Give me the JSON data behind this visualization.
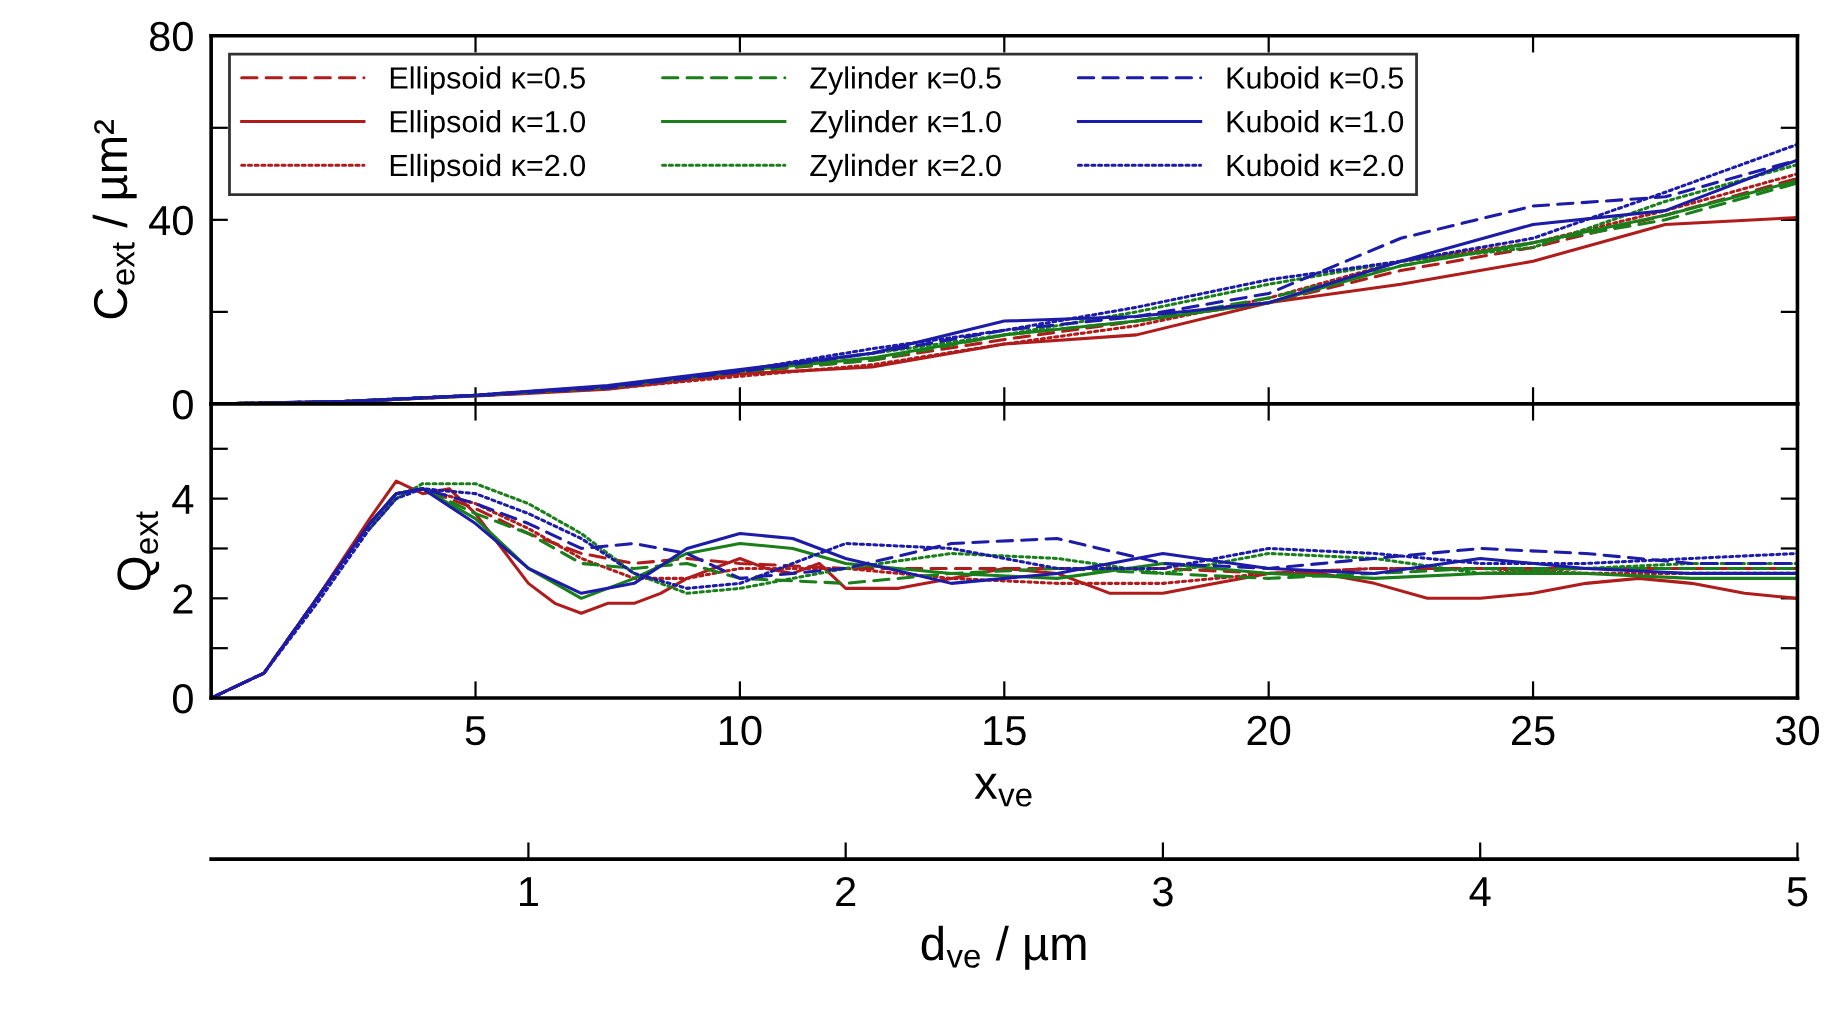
{
  "chart_data": [
    {
      "type": "line",
      "ylabel": "C$_{ext}$ / µm²",
      "xlim": [
        0,
        30
      ],
      "xticks": [
        5,
        10,
        15,
        20,
        25,
        30
      ],
      "ylim": [
        0,
        80
      ],
      "yticks": [
        0,
        {
          "value": 20,
          "label": null
        },
        40,
        {
          "value": 60,
          "label": null
        },
        80
      ],
      "tick_labels": "y",
      "legend": "top left",
      "x": [
        0,
        2.5,
        5,
        7.5,
        10,
        12.5,
        15,
        17.5,
        20,
        22.5,
        25,
        27.5,
        30
      ],
      "series": [
        {
          "name": "Ellipsoid κ=0.5",
          "color": "#b01c1c",
          "line_style": "dashed",
          "values": [
            0,
            0.5,
            1.8,
            3.5,
            6.8,
            9.5,
            14,
            18,
            22,
            29,
            34,
            41,
            49
          ]
        },
        {
          "name": "Ellipsoid κ=1.0",
          "color": "#b01c1c",
          "line_style": "solid",
          "values": [
            0,
            0.5,
            1.7,
            3.2,
            6.5,
            8,
            13,
            15,
            22,
            26,
            31,
            39,
            40.5
          ]
        },
        {
          "name": "Ellipsoid κ=2.0",
          "color": "#b01c1c",
          "line_style": "dotted",
          "values": [
            0,
            0.5,
            1.8,
            3.3,
            6,
            8.5,
            13,
            17,
            23,
            31,
            35,
            42,
            50
          ]
        },
        {
          "name": "Zylinder κ=0.5",
          "color": "#1a7f1a",
          "line_style": "dashed",
          "values": [
            0,
            0.5,
            1.8,
            3.5,
            7,
            9.5,
            15,
            18,
            23,
            30,
            35,
            40,
            48
          ]
        },
        {
          "name": "Zylinder κ=1.0",
          "color": "#1a7f1a",
          "line_style": "solid",
          "values": [
            0,
            0.5,
            1.8,
            3.6,
            7.2,
            10,
            15,
            18,
            22,
            30,
            35,
            41,
            48.5
          ]
        },
        {
          "name": "Zylinder κ=2.0",
          "color": "#1a7f1a",
          "line_style": "dotted",
          "values": [
            0,
            0.5,
            1.9,
            3.6,
            7,
            11,
            15,
            20,
            26,
            31,
            34,
            44,
            52
          ]
        },
        {
          "name": "Kuboid κ=0.5",
          "color": "#1c1ca8",
          "line_style": "dashed",
          "values": [
            0,
            0.5,
            1.8,
            3.5,
            7,
            11,
            16,
            19,
            24,
            36,
            43,
            45,
            53
          ]
        },
        {
          "name": "Kuboid κ=1.0",
          "color": "#1c1ca8",
          "line_style": "solid",
          "values": [
            0,
            0.5,
            1.9,
            4,
            7.5,
            11,
            18,
            19,
            22,
            31,
            39,
            42,
            53
          ]
        },
        {
          "name": "Kuboid κ=2.0",
          "color": "#1c1ca8",
          "line_style": "dotted",
          "values": [
            0,
            0.5,
            1.9,
            3.8,
            7.2,
            12,
            16,
            21,
            27,
            31,
            36,
            46,
            56.4
          ]
        }
      ]
    },
    {
      "type": "line",
      "ylabel": "Q$_{ext}$",
      "xlabel": "x$_{ve}$",
      "x2label": "d$_{ve}$ / µm",
      "xlim": [
        0,
        30
      ],
      "xticks": [
        5,
        10,
        15,
        20,
        25,
        30
      ],
      "x2lim": [
        0,
        5
      ],
      "x2ticks": [
        1,
        2,
        3,
        4,
        5
      ],
      "ylim": [
        0,
        5.9
      ],
      "yticks": [
        0,
        {
          "value": 1,
          "label": null
        },
        2,
        {
          "value": 3,
          "label": null
        },
        4,
        {
          "value": 5,
          "label": null
        }
      ],
      "x": [
        0,
        1,
        2,
        3,
        3.5,
        4,
        5,
        6,
        7,
        8,
        9,
        10,
        11,
        12,
        14,
        16,
        18,
        20,
        22,
        24,
        26,
        28,
        30
      ],
      "series": [
        {
          "color": "#b01c1c",
          "line_style": "dashed",
          "values": [
            0,
            0.5,
            2.0,
            3.5,
            4.1,
            4.2,
            3.8,
            3.3,
            2.9,
            2.7,
            2.8,
            2.7,
            2.65,
            2.6,
            2.6,
            2.6,
            2.6,
            2.5,
            2.6,
            2.6,
            2.6,
            2.6,
            2.6
          ]
        },
        {
          "color": "#b01c1c",
          "line_style": "solid",
          "x": [
            0,
            1,
            2,
            3,
            3.5,
            4,
            4.5,
            5,
            5.5,
            6,
            6.5,
            7,
            7.5,
            8,
            8.5,
            9,
            9.5,
            10,
            10.5,
            11,
            11.5,
            12,
            13,
            14,
            15,
            16,
            17,
            18,
            19,
            20,
            21,
            22,
            23,
            24,
            25,
            26,
            27,
            28,
            29,
            30
          ],
          "values": [
            0,
            0.5,
            2.0,
            3.6,
            4.35,
            4.1,
            4.2,
            3.7,
            3.0,
            2.3,
            1.9,
            1.7,
            1.9,
            1.9,
            2.1,
            2.4,
            2.6,
            2.8,
            2.6,
            2.5,
            2.7,
            2.2,
            2.2,
            2.4,
            2.6,
            2.5,
            2.1,
            2.1,
            2.3,
            2.5,
            2.5,
            2.3,
            2.0,
            2.0,
            2.1,
            2.3,
            2.4,
            2.3,
            2.1,
            2.0
          ]
        },
        {
          "color": "#b01c1c",
          "line_style": "dotted",
          "values": [
            0,
            0.5,
            2.0,
            3.5,
            4.1,
            4.2,
            3.9,
            3.4,
            2.8,
            2.4,
            2.4,
            2.6,
            2.6,
            2.6,
            2.4,
            2.3,
            2.3,
            2.5,
            2.6,
            2.6,
            2.5,
            2.5,
            2.5
          ]
        },
        {
          "color": "#1a7f1a",
          "line_style": "dashed",
          "values": [
            null,
            null,
            null,
            3.5,
            4.1,
            4.2,
            3.7,
            3.3,
            2.7,
            2.6,
            2.7,
            2.4,
            2.35,
            2.3,
            2.5,
            2.6,
            2.5,
            2.4,
            2.5,
            2.6,
            2.6,
            2.6,
            2.6
          ]
        },
        {
          "color": "#1a7f1a",
          "line_style": "solid",
          "values": [
            null,
            null,
            null,
            3.5,
            4.1,
            4.2,
            3.6,
            2.6,
            2.0,
            2.4,
            2.9,
            3.1,
            3.0,
            2.7,
            2.5,
            2.4,
            2.7,
            2.5,
            2.4,
            2.5,
            2.5,
            2.4,
            2.4
          ]
        },
        {
          "color": "#1a7f1a",
          "line_style": "dotted",
          "values": [
            null,
            null,
            null,
            3.4,
            4.0,
            4.3,
            4.3,
            3.9,
            3.3,
            2.5,
            2.1,
            2.2,
            2.4,
            2.6,
            2.9,
            2.8,
            2.5,
            2.9,
            2.8,
            2.5,
            2.6,
            2.7,
            2.7
          ]
        },
        {
          "color": "#1c1ca8",
          "line_style": "dashed",
          "values": [
            0,
            0.5,
            2.0,
            3.5,
            4.1,
            4.2,
            3.9,
            3.5,
            3.0,
            3.1,
            2.9,
            2.4,
            2.5,
            2.6,
            3.1,
            3.2,
            2.7,
            2.6,
            2.8,
            3.0,
            2.9,
            2.7,
            2.7
          ]
        },
        {
          "color": "#1c1ca8",
          "line_style": "solid",
          "values": [
            0,
            0.5,
            2.0,
            3.5,
            4.1,
            4.2,
            3.5,
            2.6,
            2.1,
            2.3,
            3.0,
            3.3,
            3.2,
            2.8,
            2.3,
            2.5,
            2.9,
            2.6,
            2.5,
            2.8,
            2.6,
            2.5,
            2.5
          ]
        },
        {
          "color": "#1c1ca8",
          "line_style": "dotted",
          "values": [
            0,
            0.5,
            1.9,
            3.4,
            4.0,
            4.2,
            4.1,
            3.7,
            3.2,
            2.5,
            2.2,
            2.3,
            2.7,
            3.1,
            3.0,
            2.6,
            2.6,
            3.0,
            2.9,
            2.7,
            2.7,
            2.8,
            2.9
          ]
        }
      ]
    }
  ]
}
